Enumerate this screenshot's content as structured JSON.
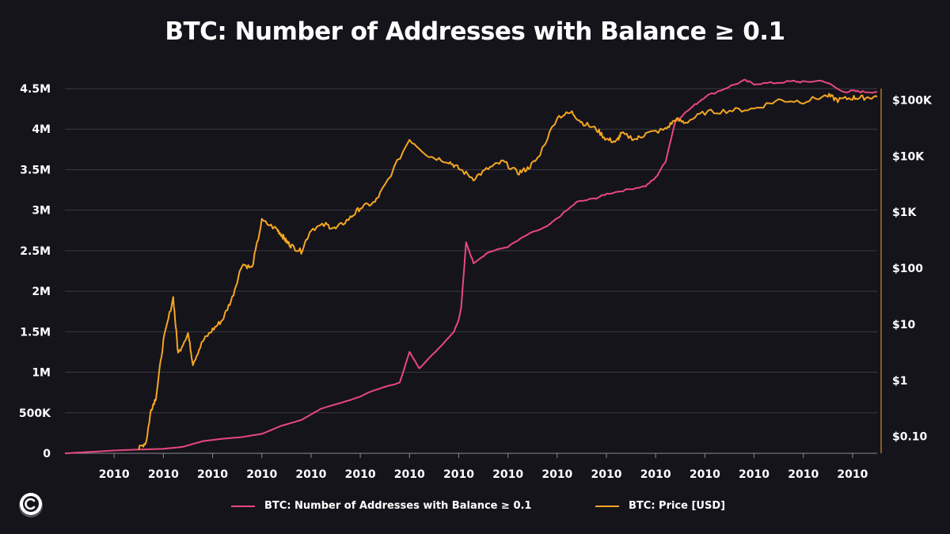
{
  "colors": {
    "background": "#15141b",
    "grid": "#3a3940",
    "addresses": "#e8487d",
    "price": "#f5a623",
    "axis_right": "#f5a623"
  },
  "icons": {
    "logo": "glassnode-logo-icon"
  },
  "chart_data": {
    "type": "line",
    "title": "BTC: Number of Addresses with Balance ≥ 0.1",
    "grid": true,
    "legend_placement": "bottom",
    "x_tick_labels": [
      "2010",
      "2010",
      "2010",
      "2010",
      "2010",
      "2010",
      "2010",
      "2010",
      "2010",
      "2010",
      "2010",
      "2010",
      "2010",
      "2010",
      "2010",
      "2010"
    ],
    "y_left": {
      "ylim": [
        0,
        4500000
      ],
      "tick_labels": [
        "0",
        "500K",
        "1M",
        "1.5M",
        "2M",
        "2.5M",
        "3M",
        "3.5M",
        "4M",
        "4.5M"
      ]
    },
    "y_right": {
      "scale": "log",
      "ylim": [
        0.05,
        160000
      ],
      "tick_labels": [
        "$0.10",
        "$1",
        "$10",
        "$100",
        "$1K",
        "$10K",
        "$100K"
      ]
    },
    "series": [
      {
        "name": "BTC: Number of Addresses with Balance ≥ 0.1",
        "axis": "left",
        "x": [
          0,
          0.6,
          1,
          1.4,
          2,
          2.4,
          2.8,
          3.2,
          3.6,
          4,
          4.4,
          4.8,
          5.2,
          5.6,
          6,
          6.2,
          6.5,
          6.8,
          7,
          7.2,
          7.6,
          7.9,
          8,
          8.05,
          8.15,
          8.3,
          8.6,
          9,
          9.4,
          9.8,
          10,
          10.4,
          10.8,
          11,
          11.4,
          11.8,
          12,
          12.2,
          12.4,
          12.8,
          13,
          13.4,
          13.8,
          14,
          14.4,
          14.8,
          15,
          15.4,
          15.8,
          16,
          16.2,
          16.5
        ],
        "values": [
          0,
          20000,
          35000,
          45000,
          55000,
          80000,
          150000,
          180000,
          200000,
          240000,
          340000,
          410000,
          550000,
          620000,
          700000,
          760000,
          820000,
          870000,
          1250000,
          1050000,
          1300000,
          1500000,
          1650000,
          1800000,
          2600000,
          2350000,
          2480000,
          2550000,
          2700000,
          2800000,
          2900000,
          3100000,
          3150000,
          3200000,
          3250000,
          3300000,
          3400000,
          3600000,
          4100000,
          4300000,
          4400000,
          4500000,
          4600000,
          4560000,
          4570000,
          4590000,
          4580000,
          4600000,
          4460000,
          4470000,
          4460000,
          4460000
        ]
      },
      {
        "name": "BTC: Price [USD]",
        "axis": "right",
        "x": [
          1.5,
          1.65,
          1.75,
          1.85,
          2.0,
          2.2,
          2.3,
          2.5,
          2.6,
          2.8,
          3.0,
          3.2,
          3.4,
          3.6,
          3.8,
          4.0,
          4.3,
          4.4,
          4.5,
          4.6,
          4.8,
          5.0,
          5.3,
          5.5,
          5.8,
          6.0,
          6.3,
          6.5,
          7.0,
          7.4,
          7.8,
          8.0,
          8.3,
          8.6,
          8.9,
          9.2,
          9.4,
          9.6,
          10.0,
          10.3,
          10.5,
          10.8,
          11.0,
          11.2,
          11.3,
          11.6,
          11.8,
          12.2,
          12.4,
          12.6,
          13.0,
          13.5,
          14.0,
          14.5,
          15.0,
          15.5,
          15.7,
          16.0,
          16.2,
          16.5
        ],
        "values": [
          0.06,
          0.08,
          0.3,
          0.5,
          5,
          30,
          3,
          7,
          2,
          5,
          8,
          12,
          30,
          120,
          100,
          700,
          500,
          400,
          300,
          250,
          200,
          500,
          600,
          500,
          800,
          1200,
          1500,
          3000,
          20000,
          10000,
          8000,
          6000,
          4000,
          6000,
          8000,
          5000,
          6000,
          9000,
          50000,
          60000,
          40000,
          30000,
          20000,
          18000,
          25000,
          20000,
          25000,
          30000,
          45000,
          40000,
          60000,
          65000,
          70000,
          100000,
          95000,
          120000,
          100000,
          110000,
          110000,
          115000
        ]
      }
    ]
  }
}
